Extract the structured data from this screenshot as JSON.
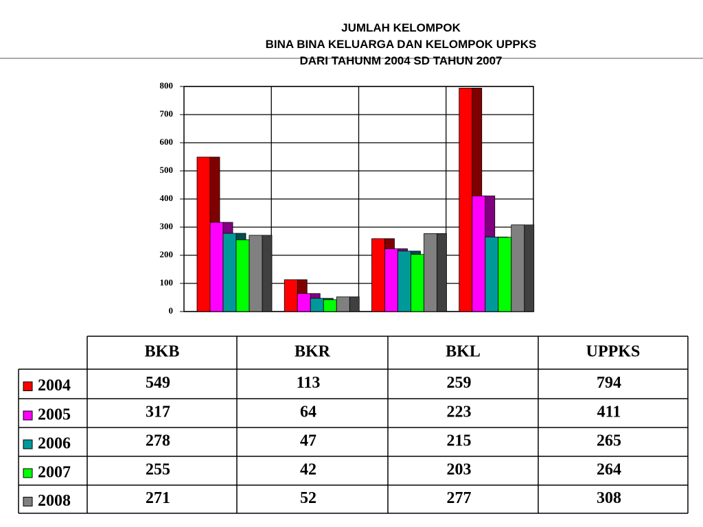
{
  "chart_data": {
    "type": "bar",
    "title": [
      "JUMLAH KELOMPOK",
      "BINA BINA KELUARGA DAN KELOMPOK UPPKS",
      "DARI TAHUNM 2004 SD TAHUN 2007"
    ],
    "categories": [
      "BKB",
      "BKR",
      "BKL",
      "UPPKS"
    ],
    "series": [
      {
        "name": "2004",
        "color": "#ff0000",
        "values": [
          549,
          113,
          259,
          794
        ]
      },
      {
        "name": "2005",
        "color": "#ff00ff",
        "values": [
          317,
          64,
          223,
          411
        ]
      },
      {
        "name": "2006",
        "color": "#009999",
        "values": [
          278,
          47,
          215,
          265
        ]
      },
      {
        "name": "2007",
        "color": "#00ff00",
        "values": [
          255,
          42,
          203,
          264
        ]
      },
      {
        "name": "2008",
        "color": "#808080",
        "values": [
          271,
          52,
          277,
          308
        ]
      }
    ],
    "ylim": [
      0,
      800
    ],
    "yticks": [
      0,
      100,
      200,
      300,
      400,
      500,
      600,
      700,
      800
    ],
    "grid": true
  }
}
